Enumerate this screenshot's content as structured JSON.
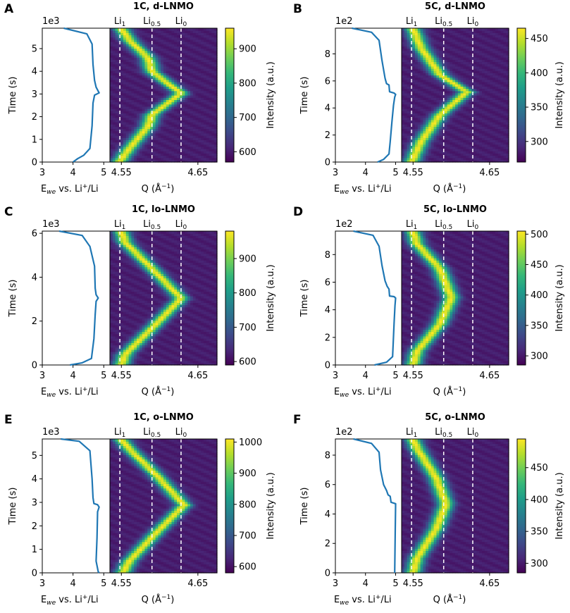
{
  "chart_data": [
    {
      "type": "heatmap",
      "panel_label": "A",
      "title": "1C, d-LNMO",
      "xlabel": "E_we vs. Li+/Li",
      "xlabel_parts": {
        "pre": "E",
        "sub": "we",
        "mid": " vs. Li",
        "sup": "+",
        "post": "/Li"
      },
      "ylabel": "Time (s)",
      "y_scale_label": "1e3",
      "y_ticks": [
        0,
        1,
        2,
        3,
        4,
        5
      ],
      "ylim": [
        0,
        5.9
      ],
      "voltage_ticks": [
        3,
        4,
        5
      ],
      "voltage_xlim": [
        3,
        5.2
      ],
      "voltage_curve": [
        [
          3.7,
          5.9
        ],
        [
          4.45,
          5.65
        ],
        [
          4.62,
          5.2
        ],
        [
          4.65,
          4.3
        ],
        [
          4.7,
          3.6
        ],
        [
          4.75,
          3.3
        ],
        [
          4.85,
          3.05
        ],
        [
          4.7,
          2.95
        ],
        [
          4.65,
          2.6
        ],
        [
          4.62,
          1.6
        ],
        [
          4.55,
          0.6
        ],
        [
          4.35,
          0.3
        ],
        [
          4.15,
          0.15
        ],
        [
          4.0,
          0.0
        ]
      ],
      "q_ticks": [
        4.55,
        4.65
      ],
      "q_xlim": [
        4.535,
        4.675
      ],
      "q_label": "Q (Å⁻¹)",
      "q_label_parts": {
        "pre": "Q (Å",
        "sup": "−1",
        "post": ")"
      },
      "phase_lines": [
        {
          "label": "Li",
          "sub": "1",
          "q": 4.548
        },
        {
          "label": "Li",
          "sub": "0.5",
          "q": 4.59
        },
        {
          "label": "Li",
          "sub": "0",
          "q": 4.628
        }
      ],
      "peak_path": [
        [
          4.547,
          0.0
        ],
        [
          4.56,
          0.6
        ],
        [
          4.585,
          1.6
        ],
        [
          4.59,
          2.1
        ],
        [
          4.628,
          3.05
        ],
        [
          4.59,
          4.0
        ],
        [
          4.585,
          4.6
        ],
        [
          4.56,
          5.4
        ],
        [
          4.55,
          5.9
        ]
      ],
      "colorbar": {
        "label": "Intensity (a.u.)",
        "ticks": [
          600,
          700,
          800,
          900
        ],
        "range": [
          570,
          960
        ]
      }
    },
    {
      "type": "heatmap",
      "panel_label": "B",
      "title": "5C, d-LNMO",
      "xlabel": "E_we vs. Li+/Li",
      "xlabel_parts": {
        "pre": "E",
        "sub": "we",
        "mid": " vs. Li",
        "sup": "+",
        "post": "/Li"
      },
      "ylabel": "Time (s)",
      "y_scale_label": "1e2",
      "y_ticks": [
        0,
        2,
        4,
        6,
        8
      ],
      "ylim": [
        0,
        9.9
      ],
      "voltage_ticks": [
        3,
        4,
        5
      ],
      "voltage_xlim": [
        3,
        5.2
      ],
      "voltage_curve": [
        [
          3.55,
          9.9
        ],
        [
          4.2,
          9.6
        ],
        [
          4.45,
          9.0
        ],
        [
          4.55,
          7.5
        ],
        [
          4.65,
          6.2
        ],
        [
          4.7,
          5.8
        ],
        [
          4.78,
          5.7
        ],
        [
          4.8,
          5.2
        ],
        [
          4.95,
          5.1
        ],
        [
          5.0,
          5.0
        ],
        [
          4.97,
          4.8
        ],
        [
          4.93,
          4.2
        ],
        [
          4.88,
          3.0
        ],
        [
          4.82,
          1.5
        ],
        [
          4.78,
          0.6
        ],
        [
          4.6,
          0.2
        ],
        [
          4.4,
          0.0
        ]
      ],
      "q_ticks": [
        4.55,
        4.65
      ],
      "q_xlim": [
        4.535,
        4.675
      ],
      "q_label": "Q (Å⁻¹)",
      "q_label_parts": {
        "pre": "Q (Å",
        "sup": "−1",
        "post": ")"
      },
      "phase_lines": [
        {
          "label": "Li",
          "sub": "1",
          "q": 4.548
        },
        {
          "label": "Li",
          "sub": "0.5",
          "q": 4.59
        },
        {
          "label": "Li",
          "sub": "0",
          "q": 4.628
        }
      ],
      "peak_path": [
        [
          4.548,
          0.0
        ],
        [
          4.56,
          1.5
        ],
        [
          4.585,
          3.5
        ],
        [
          4.62,
          5.2
        ],
        [
          4.585,
          6.5
        ],
        [
          4.56,
          8.5
        ],
        [
          4.55,
          9.9
        ]
      ],
      "colorbar": {
        "label": "Intensity (a.u.)",
        "ticks": [
          300,
          350,
          400,
          450
        ],
        "range": [
          270,
          465
        ]
      }
    },
    {
      "type": "heatmap",
      "panel_label": "C",
      "title": "1C, lo-LNMO",
      "xlabel": "E_we vs. Li+/Li",
      "xlabel_parts": {
        "pre": "E",
        "sub": "we",
        "mid": " vs. Li",
        "sup": "+",
        "post": "/Li"
      },
      "ylabel": "Time (s)",
      "y_scale_label": "1e3",
      "y_ticks": [
        0,
        2,
        4,
        6
      ],
      "ylim": [
        0,
        6.1
      ],
      "voltage_ticks": [
        3,
        4,
        5
      ],
      "voltage_xlim": [
        3,
        5.2
      ],
      "voltage_curve": [
        [
          3.55,
          6.1
        ],
        [
          4.3,
          5.9
        ],
        [
          4.55,
          5.4
        ],
        [
          4.7,
          4.5
        ],
        [
          4.72,
          3.5
        ],
        [
          4.75,
          3.2
        ],
        [
          4.82,
          3.05
        ],
        [
          4.75,
          2.9
        ],
        [
          4.72,
          2.3
        ],
        [
          4.68,
          1.2
        ],
        [
          4.6,
          0.3
        ],
        [
          4.3,
          0.1
        ],
        [
          3.9,
          0.0
        ]
      ],
      "q_ticks": [
        4.55,
        4.65
      ],
      "q_xlim": [
        4.535,
        4.675
      ],
      "q_label": "Q (Å⁻¹)",
      "q_label_parts": {
        "pre": "Q (Å",
        "sup": "−1",
        "post": ")"
      },
      "phase_lines": [
        {
          "label": "Li",
          "sub": "1",
          "q": 4.548
        },
        {
          "label": "Li",
          "sub": "0.5",
          "q": 4.59
        },
        {
          "label": "Li",
          "sub": "0",
          "q": 4.628
        }
      ],
      "peak_path": [
        [
          4.55,
          0.0
        ],
        [
          4.555,
          0.5
        ],
        [
          4.593,
          1.8
        ],
        [
          4.628,
          3.05
        ],
        [
          4.593,
          4.3
        ],
        [
          4.555,
          5.6
        ],
        [
          4.55,
          6.1
        ]
      ],
      "colorbar": {
        "label": "Intensity (a.u.)",
        "ticks": [
          600,
          700,
          800,
          900
        ],
        "range": [
          590,
          980
        ]
      }
    },
    {
      "type": "heatmap",
      "panel_label": "D",
      "title": "5C, lo-LNMO",
      "xlabel": "E_we vs. Li+/Li",
      "xlabel_parts": {
        "pre": "E",
        "sub": "we",
        "mid": " vs. Li",
        "sup": "+",
        "post": "/Li"
      },
      "ylabel": "Time (s)",
      "y_scale_label": "1e2",
      "y_ticks": [
        0,
        2,
        4,
        6,
        8
      ],
      "ylim": [
        0,
        9.7
      ],
      "voltage_ticks": [
        3,
        4,
        5
      ],
      "voltage_xlim": [
        3,
        5.2
      ],
      "voltage_curve": [
        [
          3.6,
          9.7
        ],
        [
          4.25,
          9.4
        ],
        [
          4.45,
          8.6
        ],
        [
          4.55,
          7.2
        ],
        [
          4.65,
          6.1
        ],
        [
          4.72,
          5.7
        ],
        [
          4.78,
          5.5
        ],
        [
          4.8,
          5.0
        ],
        [
          4.95,
          4.95
        ],
        [
          5.0,
          4.85
        ],
        [
          4.98,
          4.3
        ],
        [
          4.95,
          3.0
        ],
        [
          4.92,
          1.5
        ],
        [
          4.9,
          0.6
        ],
        [
          4.7,
          0.2
        ],
        [
          4.3,
          0.0
        ]
      ],
      "q_ticks": [
        4.55,
        4.65
      ],
      "q_xlim": [
        4.535,
        4.675
      ],
      "q_label": "Q (Å⁻¹)",
      "q_label_parts": {
        "pre": "Q (Å",
        "sup": "−1",
        "post": ")"
      },
      "phase_lines": [
        {
          "label": "Li",
          "sub": "1",
          "q": 4.548
        },
        {
          "label": "Li",
          "sub": "0.5",
          "q": 4.59
        },
        {
          "label": "Li",
          "sub": "0",
          "q": 4.628
        }
      ],
      "peak_path": [
        [
          4.55,
          0.0
        ],
        [
          4.555,
          1.0
        ],
        [
          4.585,
          3.0
        ],
        [
          4.6,
          4.9
        ],
        [
          4.585,
          7.0
        ],
        [
          4.555,
          8.8
        ],
        [
          4.55,
          9.7
        ]
      ],
      "colorbar": {
        "label": "Intensity (a.u.)",
        "ticks": [
          300,
          350,
          400,
          450,
          500
        ],
        "range": [
          285,
          505
        ]
      }
    },
    {
      "type": "heatmap",
      "panel_label": "E",
      "title": "1C, o-LNMO",
      "xlabel": "E_we vs. Li+/Li",
      "xlabel_parts": {
        "pre": "E",
        "sub": "we",
        "mid": " vs. Li",
        "sup": "+",
        "post": "/Li"
      },
      "ylabel": "Time (s)",
      "y_scale_label": "1e3",
      "y_ticks": [
        0,
        1,
        2,
        3,
        4,
        5
      ],
      "ylim": [
        0,
        5.7
      ],
      "voltage_ticks": [
        3,
        4,
        5
      ],
      "voltage_xlim": [
        3,
        5.2
      ],
      "voltage_curve": [
        [
          3.6,
          5.7
        ],
        [
          4.2,
          5.6
        ],
        [
          4.55,
          5.2
        ],
        [
          4.62,
          4.0
        ],
        [
          4.65,
          3.2
        ],
        [
          4.68,
          2.95
        ],
        [
          4.8,
          2.9
        ],
        [
          4.85,
          2.8
        ],
        [
          4.8,
          2.6
        ],
        [
          4.78,
          1.5
        ],
        [
          4.75,
          0.5
        ],
        [
          4.82,
          0.05
        ],
        [
          4.85,
          0.0
        ]
      ],
      "q_ticks": [
        4.55,
        4.65
      ],
      "q_xlim": [
        4.535,
        4.675
      ],
      "q_label": "Q (Å⁻¹)",
      "q_label_parts": {
        "pre": "Q (Å",
        "sup": "−1",
        "post": ")"
      },
      "phase_lines": [
        {
          "label": "Li",
          "sub": "1",
          "q": 4.548
        },
        {
          "label": "Li",
          "sub": "0.5",
          "q": 4.59
        },
        {
          "label": "Li",
          "sub": "0",
          "q": 4.628
        }
      ],
      "peak_path": [
        [
          4.552,
          0.0
        ],
        [
          4.56,
          0.5
        ],
        [
          4.595,
          1.7
        ],
        [
          4.632,
          2.9
        ],
        [
          4.595,
          4.2
        ],
        [
          4.56,
          5.3
        ],
        [
          4.55,
          5.7
        ]
      ],
      "colorbar": {
        "label": "Intensity (a.u.)",
        "ticks": [
          600,
          700,
          800,
          900,
          1000
        ],
        "range": [
          580,
          1010
        ]
      }
    },
    {
      "type": "heatmap",
      "panel_label": "F",
      "title": "5C, o-LNMO",
      "xlabel": "E_we vs. Li+/Li",
      "xlabel_parts": {
        "pre": "E",
        "sub": "we",
        "mid": " vs. Li",
        "sup": "+",
        "post": "/Li"
      },
      "ylabel": "Time (s)",
      "y_scale_label": "1e2",
      "y_ticks": [
        0,
        2,
        4,
        6,
        8
      ],
      "ylim": [
        0,
        9.1
      ],
      "voltage_ticks": [
        3,
        4,
        5
      ],
      "voltage_xlim": [
        3,
        5.2
      ],
      "voltage_curve": [
        [
          3.6,
          9.1
        ],
        [
          4.2,
          8.8
        ],
        [
          4.45,
          8.2
        ],
        [
          4.5,
          7.0
        ],
        [
          4.6,
          6.0
        ],
        [
          4.7,
          5.6
        ],
        [
          4.75,
          5.3
        ],
        [
          4.82,
          5.2
        ],
        [
          4.85,
          4.8
        ],
        [
          5.0,
          4.7
        ],
        [
          4.99,
          3.0
        ],
        [
          4.97,
          0.0
        ]
      ],
      "q_ticks": [
        4.55,
        4.65
      ],
      "q_xlim": [
        4.535,
        4.675
      ],
      "q_label": "Q (Å⁻¹)",
      "q_label_parts": {
        "pre": "Q (Å",
        "sup": "−1",
        "post": ")"
      },
      "phase_lines": [
        {
          "label": "Li",
          "sub": "1",
          "q": 4.548
        },
        {
          "label": "Li",
          "sub": "0.5",
          "q": 4.59
        },
        {
          "label": "Li",
          "sub": "0",
          "q": 4.628
        }
      ],
      "peak_path": [
        [
          4.55,
          0.0
        ],
        [
          4.555,
          1.0
        ],
        [
          4.58,
          3.0
        ],
        [
          4.593,
          4.7
        ],
        [
          4.58,
          6.5
        ],
        [
          4.555,
          8.5
        ],
        [
          4.55,
          9.1
        ]
      ],
      "colorbar": {
        "label": "Intensity (a.u.)",
        "ticks": [
          300,
          350,
          400,
          450
        ],
        "range": [
          285,
          495
        ]
      }
    }
  ],
  "colors": {
    "voltage_line": "#1f77b4",
    "phase_line": "#ffffff",
    "colormap": [
      "#440154",
      "#482878",
      "#3e4989",
      "#31688e",
      "#26828e",
      "#1f9e89",
      "#35b779",
      "#6ece58",
      "#b5de2b",
      "#fde725"
    ]
  }
}
